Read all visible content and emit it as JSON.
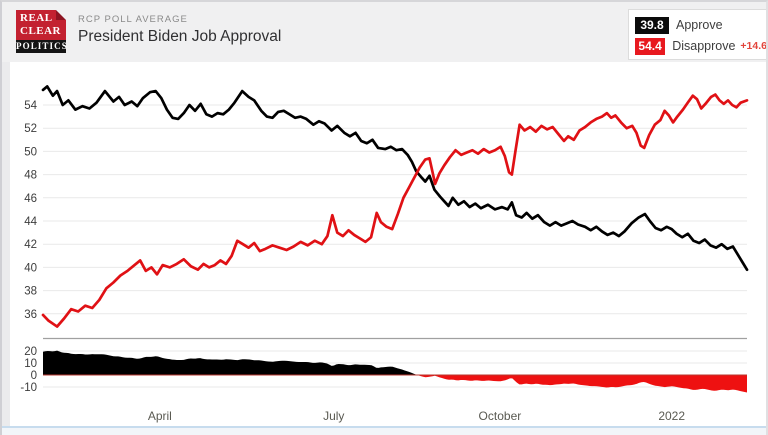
{
  "header": {
    "kicker": "RCP POLL AVERAGE",
    "title": "President Biden Job Approval",
    "logo": {
      "line1": "REAL",
      "line2": "CLEAR",
      "line3": "POLITICS"
    }
  },
  "legend": {
    "approve": {
      "value": "39.8",
      "label": "Approve"
    },
    "disapprove": {
      "value": "54.4",
      "label": "Disapprove",
      "spread": "+14.6"
    }
  },
  "chart_data": {
    "type": "line",
    "title": "President Biden Job Approval",
    "x_axis": {
      "ticks": [
        {
          "label": "April",
          "f": 0.166
        },
        {
          "label": "July",
          "f": 0.413
        },
        {
          "label": "October",
          "f": 0.649
        },
        {
          "label": "2022",
          "f": 0.893
        }
      ]
    },
    "main_panel": {
      "ylim": [
        33.8,
        56.7
      ],
      "yticks": [
        54,
        52,
        50,
        48,
        46,
        44,
        42,
        40,
        38,
        36
      ],
      "grid": true,
      "series": [
        {
          "name": "Approve",
          "color": "#000000",
          "current": 39.8,
          "points": [
            [
              0.0,
              55.3
            ],
            [
              0.006,
              55.6
            ],
            [
              0.014,
              54.8
            ],
            [
              0.02,
              55.2
            ],
            [
              0.028,
              54.0
            ],
            [
              0.036,
              54.4
            ],
            [
              0.046,
              53.6
            ],
            [
              0.056,
              53.9
            ],
            [
              0.066,
              53.7
            ],
            [
              0.076,
              54.2
            ],
            [
              0.088,
              55.2
            ],
            [
              0.1,
              54.3
            ],
            [
              0.108,
              54.7
            ],
            [
              0.116,
              54.0
            ],
            [
              0.126,
              54.3
            ],
            [
              0.134,
              53.9
            ],
            [
              0.142,
              54.6
            ],
            [
              0.152,
              55.1
            ],
            [
              0.16,
              55.2
            ],
            [
              0.168,
              54.6
            ],
            [
              0.176,
              53.6
            ],
            [
              0.184,
              52.9
            ],
            [
              0.192,
              52.8
            ],
            [
              0.2,
              53.3
            ],
            [
              0.208,
              54.0
            ],
            [
              0.216,
              53.5
            ],
            [
              0.224,
              54.1
            ],
            [
              0.232,
              53.2
            ],
            [
              0.24,
              53.0
            ],
            [
              0.248,
              53.3
            ],
            [
              0.256,
              53.2
            ],
            [
              0.264,
              53.6
            ],
            [
              0.272,
              54.2
            ],
            [
              0.283,
              55.2
            ],
            [
              0.292,
              54.7
            ],
            [
              0.3,
              54.4
            ],
            [
              0.31,
              53.5
            ],
            [
              0.318,
              53.0
            ],
            [
              0.326,
              52.9
            ],
            [
              0.334,
              53.4
            ],
            [
              0.342,
              53.5
            ],
            [
              0.35,
              53.2
            ],
            [
              0.358,
              52.9
            ],
            [
              0.366,
              53.0
            ],
            [
              0.374,
              52.8
            ],
            [
              0.384,
              52.3
            ],
            [
              0.392,
              52.6
            ],
            [
              0.4,
              52.4
            ],
            [
              0.41,
              51.8
            ],
            [
              0.418,
              52.2
            ],
            [
              0.428,
              51.6
            ],
            [
              0.436,
              51.3
            ],
            [
              0.444,
              51.6
            ],
            [
              0.452,
              50.9
            ],
            [
              0.46,
              50.7
            ],
            [
              0.468,
              51.0
            ],
            [
              0.476,
              50.3
            ],
            [
              0.486,
              50.2
            ],
            [
              0.494,
              50.4
            ],
            [
              0.502,
              50.1
            ],
            [
              0.51,
              50.2
            ],
            [
              0.518,
              49.7
            ],
            [
              0.524,
              49.1
            ],
            [
              0.53,
              48.3
            ],
            [
              0.537,
              47.8
            ],
            [
              0.543,
              47.4
            ],
            [
              0.549,
              47.9
            ],
            [
              0.556,
              46.7
            ],
            [
              0.564,
              46.1
            ],
            [
              0.57,
              45.7
            ],
            [
              0.576,
              45.3
            ],
            [
              0.582,
              46.0
            ],
            [
              0.59,
              45.4
            ],
            [
              0.598,
              45.7
            ],
            [
              0.606,
              45.2
            ],
            [
              0.614,
              45.5
            ],
            [
              0.622,
              45.1
            ],
            [
              0.632,
              45.4
            ],
            [
              0.642,
              45.0
            ],
            [
              0.652,
              45.2
            ],
            [
              0.66,
              45.0
            ],
            [
              0.666,
              45.6
            ],
            [
              0.672,
              44.5
            ],
            [
              0.68,
              44.3
            ],
            [
              0.687,
              44.7
            ],
            [
              0.695,
              44.2
            ],
            [
              0.703,
              44.5
            ],
            [
              0.712,
              43.9
            ],
            [
              0.72,
              43.6
            ],
            [
              0.728,
              43.9
            ],
            [
              0.736,
              43.6
            ],
            [
              0.744,
              43.8
            ],
            [
              0.752,
              44.0
            ],
            [
              0.76,
              43.7
            ],
            [
              0.77,
              43.5
            ],
            [
              0.778,
              43.2
            ],
            [
              0.786,
              43.5
            ],
            [
              0.794,
              43.1
            ],
            [
              0.802,
              42.8
            ],
            [
              0.81,
              43.0
            ],
            [
              0.818,
              42.7
            ],
            [
              0.826,
              43.1
            ],
            [
              0.836,
              43.8
            ],
            [
              0.846,
              44.3
            ],
            [
              0.855,
              44.6
            ],
            [
              0.862,
              44.0
            ],
            [
              0.87,
              43.4
            ],
            [
              0.878,
              43.2
            ],
            [
              0.886,
              43.5
            ],
            [
              0.893,
              43.3
            ],
            [
              0.9,
              42.9
            ],
            [
              0.908,
              42.6
            ],
            [
              0.916,
              42.9
            ],
            [
              0.924,
              42.3
            ],
            [
              0.932,
              42.1
            ],
            [
              0.94,
              42.4
            ],
            [
              0.948,
              41.9
            ],
            [
              0.956,
              41.7
            ],
            [
              0.964,
              42.0
            ],
            [
              0.972,
              41.6
            ],
            [
              0.98,
              41.8
            ],
            [
              0.988,
              41.0
            ],
            [
              0.994,
              40.4
            ],
            [
              1.0,
              39.8
            ]
          ]
        },
        {
          "name": "Disapprove",
          "color": "#e01115",
          "current": 54.4,
          "points": [
            [
              0.0,
              35.9
            ],
            [
              0.008,
              35.4
            ],
            [
              0.02,
              34.9
            ],
            [
              0.03,
              35.6
            ],
            [
              0.04,
              36.4
            ],
            [
              0.05,
              36.2
            ],
            [
              0.06,
              36.7
            ],
            [
              0.07,
              36.5
            ],
            [
              0.08,
              37.2
            ],
            [
              0.09,
              38.2
            ],
            [
              0.1,
              38.7
            ],
            [
              0.11,
              39.3
            ],
            [
              0.12,
              39.7
            ],
            [
              0.13,
              40.2
            ],
            [
              0.138,
              40.6
            ],
            [
              0.146,
              39.7
            ],
            [
              0.154,
              40.0
            ],
            [
              0.162,
              39.4
            ],
            [
              0.17,
              40.2
            ],
            [
              0.18,
              40.0
            ],
            [
              0.19,
              40.3
            ],
            [
              0.2,
              40.7
            ],
            [
              0.21,
              40.1
            ],
            [
              0.22,
              39.8
            ],
            [
              0.228,
              40.3
            ],
            [
              0.236,
              40.0
            ],
            [
              0.244,
              40.2
            ],
            [
              0.252,
              40.6
            ],
            [
              0.26,
              40.3
            ],
            [
              0.268,
              41.0
            ],
            [
              0.276,
              42.3
            ],
            [
              0.284,
              42.0
            ],
            [
              0.292,
              41.7
            ],
            [
              0.3,
              42.1
            ],
            [
              0.308,
              41.4
            ],
            [
              0.316,
              41.6
            ],
            [
              0.326,
              41.9
            ],
            [
              0.336,
              41.7
            ],
            [
              0.346,
              41.5
            ],
            [
              0.356,
              41.8
            ],
            [
              0.366,
              42.2
            ],
            [
              0.376,
              41.9
            ],
            [
              0.386,
              42.3
            ],
            [
              0.396,
              42.0
            ],
            [
              0.404,
              42.7
            ],
            [
              0.411,
              44.5
            ],
            [
              0.418,
              43.0
            ],
            [
              0.426,
              42.7
            ],
            [
              0.434,
              43.2
            ],
            [
              0.442,
              42.8
            ],
            [
              0.45,
              42.5
            ],
            [
              0.458,
              42.2
            ],
            [
              0.466,
              42.6
            ],
            [
              0.474,
              44.7
            ],
            [
              0.48,
              43.9
            ],
            [
              0.488,
              43.5
            ],
            [
              0.496,
              43.3
            ],
            [
              0.504,
              44.6
            ],
            [
              0.512,
              46.0
            ],
            [
              0.52,
              46.9
            ],
            [
              0.527,
              47.7
            ],
            [
              0.535,
              48.6
            ],
            [
              0.543,
              49.3
            ],
            [
              0.549,
              49.4
            ],
            [
              0.557,
              47.2
            ],
            [
              0.563,
              48.1
            ],
            [
              0.57,
              48.8
            ],
            [
              0.578,
              49.5
            ],
            [
              0.586,
              50.1
            ],
            [
              0.594,
              49.7
            ],
            [
              0.602,
              49.9
            ],
            [
              0.61,
              50.1
            ],
            [
              0.618,
              49.8
            ],
            [
              0.626,
              50.2
            ],
            [
              0.634,
              49.9
            ],
            [
              0.642,
              50.1
            ],
            [
              0.65,
              50.4
            ],
            [
              0.656,
              49.6
            ],
            [
              0.662,
              48.2
            ],
            [
              0.666,
              48.0
            ],
            [
              0.671,
              50.0
            ],
            [
              0.677,
              52.3
            ],
            [
              0.684,
              51.8
            ],
            [
              0.692,
              52.1
            ],
            [
              0.7,
              51.7
            ],
            [
              0.708,
              52.2
            ],
            [
              0.716,
              51.9
            ],
            [
              0.724,
              52.1
            ],
            [
              0.732,
              51.5
            ],
            [
              0.74,
              50.9
            ],
            [
              0.746,
              51.3
            ],
            [
              0.754,
              51.0
            ],
            [
              0.762,
              51.8
            ],
            [
              0.77,
              52.1
            ],
            [
              0.778,
              52.5
            ],
            [
              0.786,
              52.8
            ],
            [
              0.794,
              53.0
            ],
            [
              0.801,
              53.3
            ],
            [
              0.807,
              52.9
            ],
            [
              0.813,
              53.1
            ],
            [
              0.821,
              52.5
            ],
            [
              0.829,
              52.0
            ],
            [
              0.837,
              52.2
            ],
            [
              0.843,
              51.6
            ],
            [
              0.849,
              50.5
            ],
            [
              0.854,
              50.3
            ],
            [
              0.861,
              51.4
            ],
            [
              0.869,
              52.3
            ],
            [
              0.877,
              52.7
            ],
            [
              0.883,
              53.5
            ],
            [
              0.889,
              53.1
            ],
            [
              0.895,
              52.5
            ],
            [
              0.901,
              53.0
            ],
            [
              0.909,
              53.6
            ],
            [
              0.917,
              54.3
            ],
            [
              0.923,
              54.8
            ],
            [
              0.929,
              54.5
            ],
            [
              0.935,
              53.7
            ],
            [
              0.941,
              54.1
            ],
            [
              0.949,
              54.7
            ],
            [
              0.955,
              54.9
            ],
            [
              0.961,
              54.4
            ],
            [
              0.967,
              54.1
            ],
            [
              0.973,
              54.4
            ],
            [
              0.979,
              54.0
            ],
            [
              0.985,
              53.8
            ],
            [
              0.991,
              54.2
            ],
            [
              1.0,
              54.4
            ]
          ]
        }
      ]
    },
    "spread_panel": {
      "ylim": [
        -20,
        30
      ],
      "yticks": [
        20,
        10,
        0,
        -10
      ],
      "derivation": "approve_minus_disapprove",
      "positive_color": "#000000",
      "negative_color": "#ee1111",
      "baseline_color": "#b8372f",
      "current_spread": -14.6
    }
  },
  "colors": {
    "header_bg": "#f0f0f1",
    "grid": "#e9e9e9",
    "axis": "#a0a0a0",
    "tick_text": "#3d3d3d",
    "xlabel_text": "#5a5a52",
    "approve": "#000000",
    "disapprove": "#e01115",
    "legend_chip_red": "#e8191f",
    "spread_text": "#e2453c"
  }
}
